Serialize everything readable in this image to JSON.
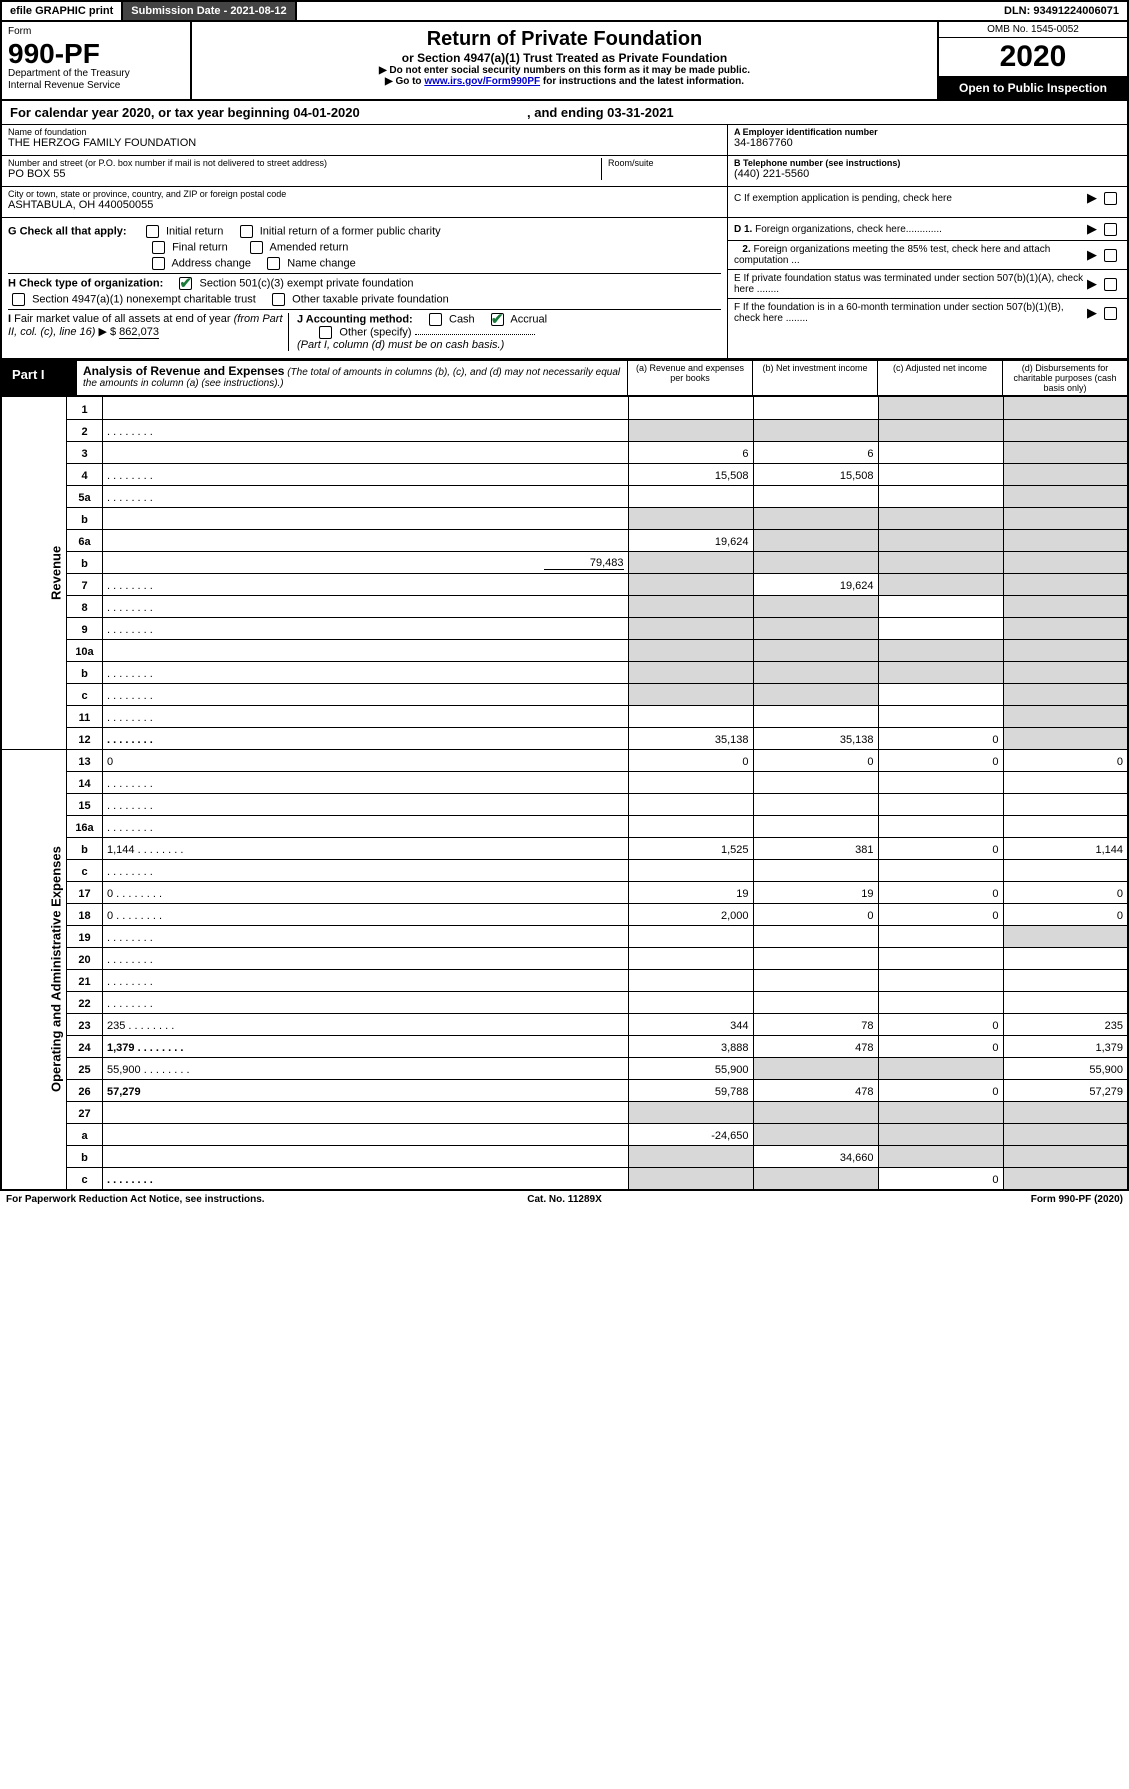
{
  "topbar": {
    "efile": "efile GRAPHIC print",
    "submission": "Submission Date - 2021-08-12",
    "dln": "DLN: 93491224006071"
  },
  "header": {
    "form_label": "Form",
    "form_no": "990-PF",
    "dept1": "Department of the Treasury",
    "dept2": "Internal Revenue Service",
    "title": "Return of Private Foundation",
    "subtitle": "or Section 4947(a)(1) Trust Treated as Private Foundation",
    "note1": "▶ Do not enter social security numbers on this form as it may be made public.",
    "note2_pre": "▶ Go to ",
    "note2_link": "www.irs.gov/Form990PF",
    "note2_post": " for instructions and the latest information.",
    "omb": "OMB No. 1545-0052",
    "year": "2020",
    "open": "Open to Public Inspection"
  },
  "cal": {
    "pre": "For calendar year 2020, or tax year beginning ",
    "begin": "04-01-2020",
    "mid": " , and ending ",
    "end": "03-31-2021"
  },
  "entity": {
    "name_lab": "Name of foundation",
    "name": "THE HERZOG FAMILY FOUNDATION",
    "addr_lab": "Number and street (or P.O. box number if mail is not delivered to street address)",
    "addr": "PO BOX 55",
    "room_lab": "Room/suite",
    "city_lab": "City or town, state or province, country, and ZIP or foreign postal code",
    "city": "ASHTABULA, OH  440050055",
    "A_lab": "A Employer identification number",
    "A": "34-1867760",
    "B_lab": "B Telephone number (see instructions)",
    "B": "(440) 221-5560",
    "C": "C If exemption application is pending, check here",
    "D1": "D 1. Foreign organizations, check here.............",
    "D2": "2. Foreign organizations meeting the 85% test, check here and attach computation ...",
    "E": "E  If private foundation status was terminated under section 507(b)(1)(A), check here ........",
    "F": "F  If the foundation is in a 60-month termination under section 507(b)(1)(B), check here ........"
  },
  "opts": {
    "G": "G Check all that apply:",
    "G_items": [
      "Initial return",
      "Initial return of a former public charity",
      "Final return",
      "Amended return",
      "Address change",
      "Name change"
    ],
    "H": "H Check type of organization:",
    "H1": "Section 501(c)(3) exempt private foundation",
    "H2": "Section 4947(a)(1) nonexempt charitable trust",
    "H3": "Other taxable private foundation",
    "I_pre": "I Fair market value of all assets at end of year (from Part II, col. (c), line 16) ▶ $ ",
    "I_val": "862,073",
    "J": "J Accounting method:",
    "J_cash": "Cash",
    "J_accrual": "Accrual",
    "J_other": "Other (specify)",
    "J_note": "(Part I, column (d) must be on cash basis.)"
  },
  "part1": {
    "label": "Part I",
    "title": "Analysis of Revenue and Expenses",
    "title_note": " (The total of amounts in columns (b), (c), and (d) may not necessarily equal the amounts in column (a) (see instructions).)",
    "cols": {
      "a": "(a)  Revenue and expenses per books",
      "b": "(b)  Net investment income",
      "c": "(c)  Adjusted net income",
      "d": "(d)  Disbursements for charitable purposes (cash basis only)"
    },
    "side_rev": "Revenue",
    "side_exp": "Operating and Administrative Expenses",
    "rows": [
      {
        "n": "1",
        "d": null,
        "a": "",
        "b": "",
        "c": null
      },
      {
        "n": "2",
        "d": null,
        "a": null,
        "b": null,
        "c": null,
        "dots": true,
        "ck": true
      },
      {
        "n": "3",
        "d": null,
        "a": "6",
        "b": "6",
        "c": ""
      },
      {
        "n": "4",
        "d": null,
        "a": "15,508",
        "b": "15,508",
        "c": "",
        "dots": true
      },
      {
        "n": "5a",
        "d": null,
        "a": "",
        "b": "",
        "c": "",
        "dots": true
      },
      {
        "n": "b",
        "d": null,
        "a": null,
        "b": null,
        "c": null,
        "inline": true
      },
      {
        "n": "6a",
        "d": null,
        "a": "19,624",
        "b": null,
        "c": null
      },
      {
        "n": "b",
        "d": null,
        "a": null,
        "b": null,
        "c": null,
        "inline_val": "79,483"
      },
      {
        "n": "7",
        "d": null,
        "a": null,
        "b": "19,624",
        "c": null,
        "dots": true
      },
      {
        "n": "8",
        "d": null,
        "a": null,
        "b": null,
        "c": "",
        "dots": true
      },
      {
        "n": "9",
        "d": null,
        "a": null,
        "b": null,
        "c": "",
        "dots": true
      },
      {
        "n": "10a",
        "d": null,
        "a": null,
        "b": null,
        "c": null,
        "inline": true
      },
      {
        "n": "b",
        "d": null,
        "a": null,
        "b": null,
        "c": null,
        "inline": true,
        "dots": true
      },
      {
        "n": "c",
        "d": null,
        "a": null,
        "b": null,
        "c": "",
        "dots": true
      },
      {
        "n": "11",
        "d": null,
        "a": "",
        "b": "",
        "c": "",
        "dots": true
      },
      {
        "n": "12",
        "d": null,
        "a": "35,138",
        "b": "35,138",
        "c": "0",
        "bold": true,
        "dots": true,
        "shade_d": true
      },
      {
        "n": "13",
        "d": "0",
        "a": "0",
        "b": "0",
        "c": "0"
      },
      {
        "n": "14",
        "d": "",
        "a": "",
        "b": "",
        "c": "",
        "dots": true
      },
      {
        "n": "15",
        "d": "",
        "a": "",
        "b": "",
        "c": "",
        "dots": true
      },
      {
        "n": "16a",
        "d": "",
        "a": "",
        "b": "",
        "c": "",
        "dots": true
      },
      {
        "n": "b",
        "d": "1,144",
        "a": "1,525",
        "b": "381",
        "c": "0",
        "dots": true
      },
      {
        "n": "c",
        "d": "",
        "a": "",
        "b": "",
        "c": "",
        "dots": true
      },
      {
        "n": "17",
        "d": "0",
        "a": "19",
        "b": "19",
        "c": "0",
        "dots": true
      },
      {
        "n": "18",
        "d": "0",
        "a": "2,000",
        "b": "0",
        "c": "0",
        "dots": true
      },
      {
        "n": "19",
        "d": null,
        "a": "",
        "b": "",
        "c": "",
        "dots": true
      },
      {
        "n": "20",
        "d": "",
        "a": "",
        "b": "",
        "c": "",
        "dots": true
      },
      {
        "n": "21",
        "d": "",
        "a": "",
        "b": "",
        "c": "",
        "dots": true
      },
      {
        "n": "22",
        "d": "",
        "a": "",
        "b": "",
        "c": "",
        "dots": true
      },
      {
        "n": "23",
        "d": "235",
        "a": "344",
        "b": "78",
        "c": "0",
        "dots": true
      },
      {
        "n": "24",
        "d": "1,379",
        "a": "3,888",
        "b": "478",
        "c": "0",
        "bold": true,
        "dots": true
      },
      {
        "n": "25",
        "d": "55,900",
        "a": "55,900",
        "b": null,
        "c": null,
        "dots": true
      },
      {
        "n": "26",
        "d": "57,279",
        "a": "59,788",
        "b": "478",
        "c": "0",
        "bold": true
      },
      {
        "n": "27",
        "d": null,
        "a": null,
        "b": null,
        "c": null
      },
      {
        "n": "a",
        "d": null,
        "a": "-24,650",
        "b": null,
        "c": null,
        "bold": true
      },
      {
        "n": "b",
        "d": null,
        "a": null,
        "b": "34,660",
        "c": null,
        "bold": true
      },
      {
        "n": "c",
        "d": null,
        "a": null,
        "b": null,
        "c": "0",
        "bold": true,
        "dots": true
      }
    ]
  },
  "footer": {
    "l": "For Paperwork Reduction Act Notice, see instructions.",
    "c": "Cat. No. 11289X",
    "r": "Form 990-PF (2020)"
  },
  "colors": {
    "shade": "#d8d8d8",
    "check": "#1a7a3a",
    "link": "#0000cc"
  }
}
